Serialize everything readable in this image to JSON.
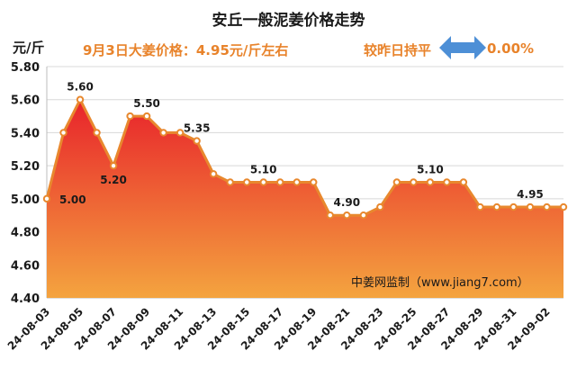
{
  "header": {
    "title": "安丘一般泥姜价格走势",
    "unit": "元/斤",
    "today_price": "9月3日大姜价格：4.95元/斤左右",
    "compare_label": "较昨日持平",
    "change_value": "0.00%"
  },
  "source": "中姜网监制（www.jiang7.com）",
  "colors": {
    "line": "#e8882e",
    "fill_top": "#e8232b",
    "fill_bottom": "#f4a43f",
    "arrow": "#4d8fd6",
    "text_accent": "#e8832b"
  },
  "chart_data": {
    "type": "area",
    "title": "安丘一般泥姜价格走势",
    "ylabel": "元/斤",
    "xlabel": "",
    "ylim": [
      4.4,
      5.8
    ],
    "yticks": [
      "4.40",
      "4.60",
      "4.80",
      "5.00",
      "5.20",
      "5.40",
      "5.60",
      "5.80"
    ],
    "grid": true,
    "x_tick_labels": [
      "24-08-03",
      "24-08-05",
      "24-08-07",
      "24-08-09",
      "24-08-11",
      "24-08-13",
      "24-08-15",
      "24-08-17",
      "24-08-19",
      "24-08-21",
      "24-08-23",
      "24-08-25",
      "24-08-27",
      "24-08-29",
      "24-08-31",
      "24-09-02"
    ],
    "x": [
      "2024-08-03",
      "2024-08-04",
      "2024-08-05",
      "2024-08-06",
      "2024-08-07",
      "2024-08-08",
      "2024-08-09",
      "2024-08-10",
      "2024-08-11",
      "2024-08-12",
      "2024-08-13",
      "2024-08-14",
      "2024-08-15",
      "2024-08-16",
      "2024-08-17",
      "2024-08-18",
      "2024-08-19",
      "2024-08-20",
      "2024-08-21",
      "2024-08-22",
      "2024-08-23",
      "2024-08-24",
      "2024-08-25",
      "2024-08-26",
      "2024-08-27",
      "2024-08-28",
      "2024-08-29",
      "2024-08-30",
      "2024-08-31",
      "2024-09-01",
      "2024-09-02",
      "2024-09-03"
    ],
    "values": [
      5.0,
      5.4,
      5.6,
      5.4,
      5.2,
      5.5,
      5.5,
      5.4,
      5.4,
      5.35,
      5.15,
      5.1,
      5.1,
      5.1,
      5.1,
      5.1,
      5.1,
      4.9,
      4.9,
      4.9,
      4.95,
      5.1,
      5.1,
      5.1,
      5.1,
      5.1,
      4.95,
      4.95,
      4.95,
      4.95,
      4.95,
      4.95
    ],
    "data_labels": [
      {
        "index": 0,
        "text": "5.00"
      },
      {
        "index": 2,
        "text": "5.60"
      },
      {
        "index": 4,
        "text": "5.20"
      },
      {
        "index": 6,
        "text": "5.50"
      },
      {
        "index": 9,
        "text": "5.35"
      },
      {
        "index": 13,
        "text": "5.10"
      },
      {
        "index": 18,
        "text": "4.90"
      },
      {
        "index": 23,
        "text": "5.10"
      },
      {
        "index": 29,
        "text": "4.95"
      }
    ]
  }
}
